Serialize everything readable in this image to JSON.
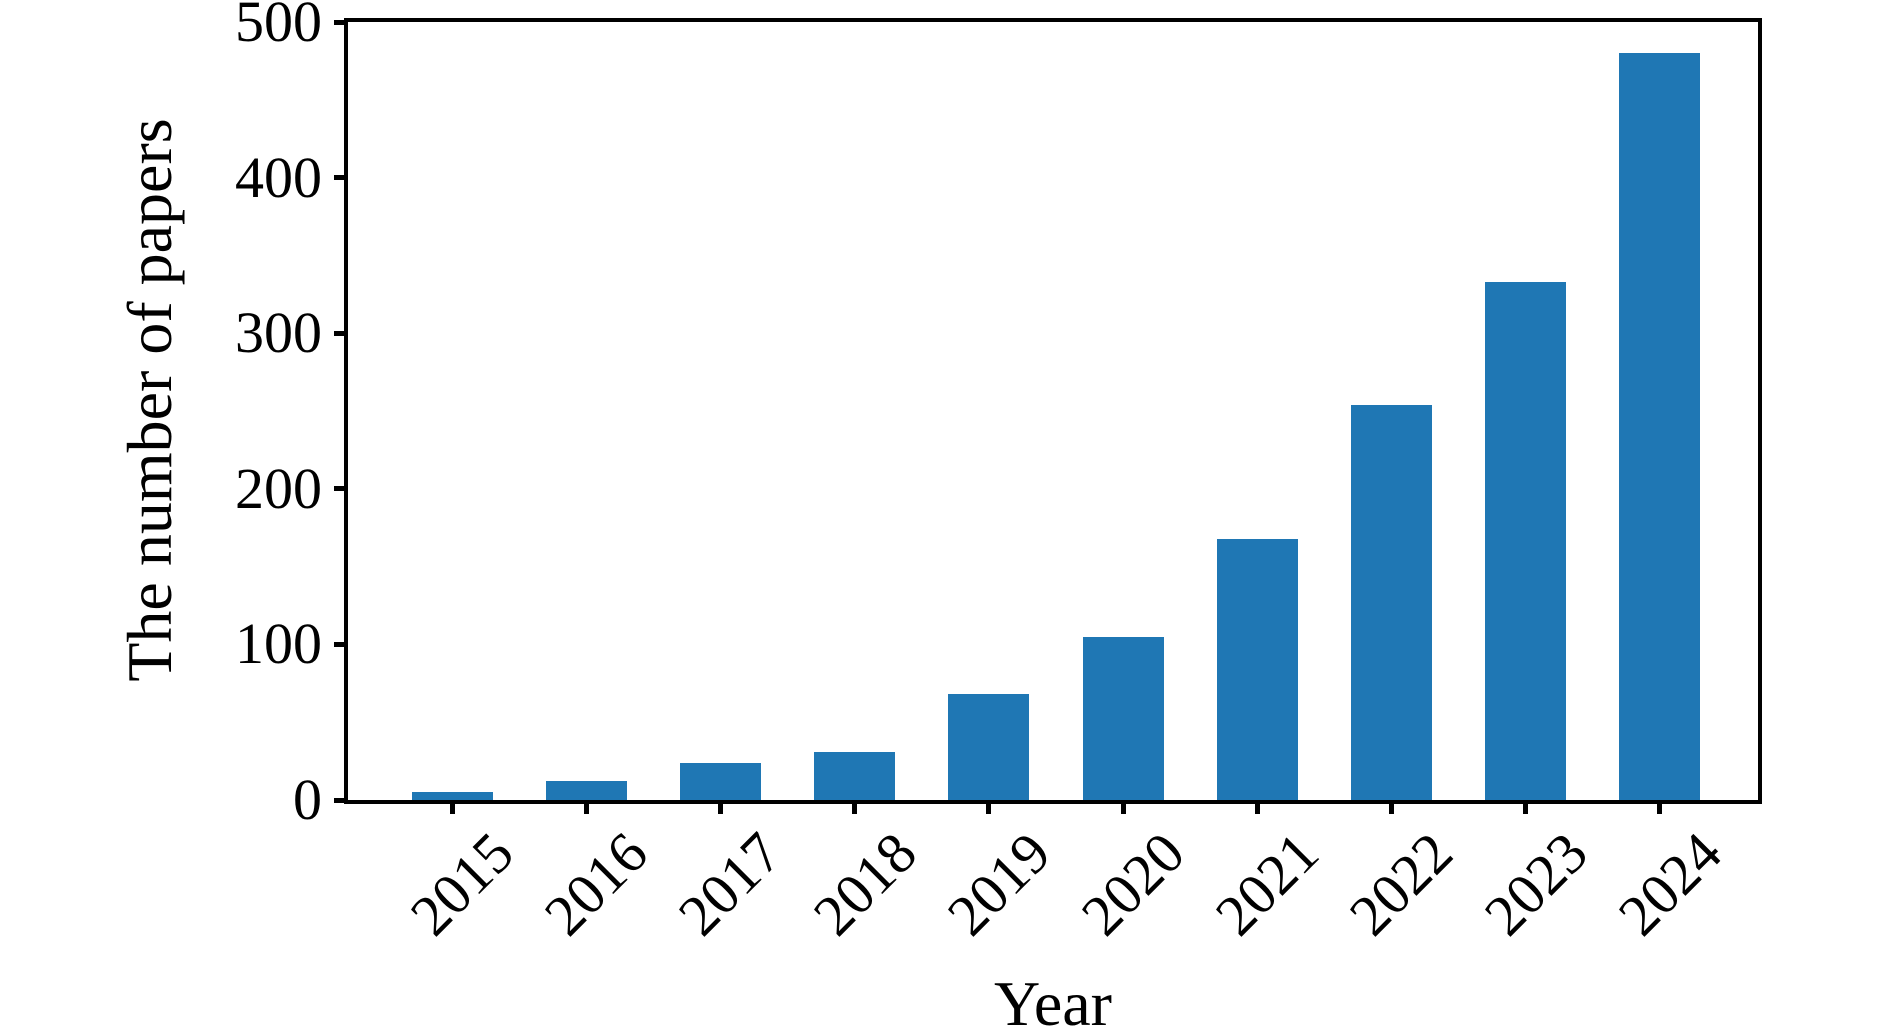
{
  "figure": {
    "background_color": "#ffffff",
    "text_color": "#000000"
  },
  "chart_data": {
    "type": "bar",
    "title": "",
    "xlabel": "Year",
    "ylabel": "The number of papers",
    "categories": [
      "2015",
      "2016",
      "2017",
      "2018",
      "2019",
      "2020",
      "2021",
      "2022",
      "2023",
      "2024"
    ],
    "values": [
      5,
      12,
      24,
      31,
      68,
      105,
      168,
      254,
      333,
      480
    ],
    "ylim": [
      0,
      500
    ],
    "yticks": [
      0,
      100,
      200,
      300,
      400,
      500
    ],
    "x_tick_rotation_deg": 45,
    "grid": false,
    "legend": false,
    "bar_color": "#1f77b4",
    "axis_color": "#000000"
  }
}
